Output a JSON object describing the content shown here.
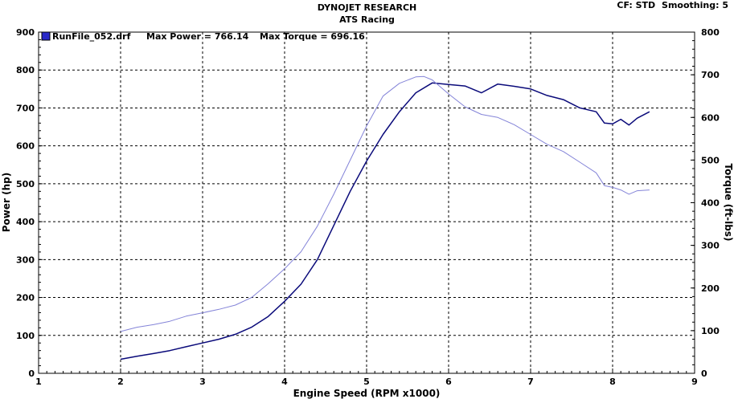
{
  "header": {
    "title": "DYNOJET RESEARCH",
    "subtitle": "ATS Racing",
    "cf": "CF: STD",
    "smoothing": "Smoothing: 5"
  },
  "legend": {
    "run_file": "RunFile_052.drf",
    "max_power": "Max Power = 766.14",
    "max_torque": "Max Torque = 696.16"
  },
  "colors": {
    "power": "#0a0a7a",
    "torque": "#8484d8",
    "legend_swatch": "#2828c8"
  },
  "chart_data": {
    "type": "line",
    "xlabel": "Engine Speed (RPM x1000)",
    "ylabel": "Power (hp)",
    "y2label": "Torque (ft-lbs)",
    "xlim": [
      1,
      9
    ],
    "ylim": [
      0,
      900
    ],
    "y2lim": [
      0,
      800
    ],
    "x_ticks": [
      1,
      2,
      3,
      4,
      5,
      6,
      7,
      8,
      9
    ],
    "y_ticks": [
      0,
      100,
      200,
      300,
      400,
      500,
      600,
      700,
      800,
      900
    ],
    "y2_ticks": [
      0,
      100,
      200,
      300,
      400,
      500,
      600,
      700,
      800
    ],
    "grid": true,
    "series": [
      {
        "name": "Power",
        "axis": "left",
        "x": [
          2.0,
          2.2,
          2.4,
          2.6,
          2.8,
          3.0,
          3.2,
          3.4,
          3.6,
          3.8,
          4.0,
          4.2,
          4.4,
          4.6,
          4.8,
          5.0,
          5.2,
          5.4,
          5.6,
          5.8,
          6.0,
          6.2,
          6.4,
          6.6,
          6.8,
          7.0,
          7.2,
          7.4,
          7.6,
          7.8,
          7.9,
          8.0,
          8.1,
          8.2,
          8.3,
          8.45
        ],
        "y": [
          37,
          45,
          52,
          60,
          70,
          80,
          90,
          103,
          122,
          150,
          190,
          235,
          300,
          390,
          480,
          560,
          630,
          690,
          740,
          766,
          762,
          758,
          740,
          763,
          757,
          750,
          733,
          722,
          700,
          690,
          660,
          658,
          670,
          655,
          673,
          690
        ]
      },
      {
        "name": "Torque",
        "axis": "right",
        "x": [
          2.0,
          2.2,
          2.4,
          2.6,
          2.8,
          3.0,
          3.2,
          3.4,
          3.6,
          3.8,
          4.0,
          4.2,
          4.4,
          4.6,
          4.8,
          5.0,
          5.2,
          5.4,
          5.6,
          5.7,
          5.8,
          6.0,
          6.2,
          6.4,
          6.6,
          6.8,
          7.0,
          7.2,
          7.4,
          7.6,
          7.8,
          7.9,
          8.0,
          8.1,
          8.2,
          8.3,
          8.45
        ],
        "y": [
          98,
          108,
          114,
          122,
          134,
          142,
          150,
          160,
          178,
          210,
          245,
          285,
          345,
          420,
          500,
          580,
          650,
          680,
          695,
          696,
          688,
          655,
          625,
          607,
          600,
          583,
          560,
          537,
          520,
          495,
          470,
          440,
          436,
          430,
          420,
          428,
          430
        ]
      }
    ]
  }
}
